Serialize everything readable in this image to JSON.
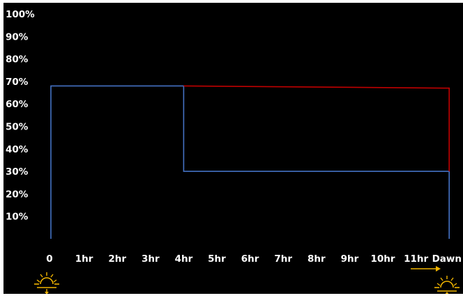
{
  "chart_data": {
    "type": "line",
    "title": "",
    "xlabel": "",
    "ylabel": "",
    "ylim": [
      0,
      100
    ],
    "y_ticks": [
      "100%",
      "90%",
      "80%",
      "70%",
      "60%",
      "50%",
      "40%",
      "30%",
      "20%",
      "10%"
    ],
    "x_categories": [
      "0",
      "1hr",
      "2hr",
      "3hr",
      "4hr",
      "5hr",
      "6hr",
      "7hr",
      "8hr",
      "9hr",
      "10hr",
      "11hr",
      "Dawn"
    ],
    "grid": false,
    "legend": "none",
    "background": "#000000",
    "series": [
      {
        "color": "#4472c4",
        "points": [
          [
            0,
            0
          ],
          [
            0,
            68
          ],
          [
            4,
            68
          ],
          [
            4,
            30
          ],
          [
            12,
            30
          ],
          [
            12,
            0
          ]
        ]
      },
      {
        "color": "#c00000",
        "points": [
          [
            4,
            68
          ],
          [
            12,
            67
          ],
          [
            12,
            30
          ]
        ]
      }
    ],
    "annotations": [
      {
        "type": "sunset-icon",
        "x": "0",
        "color": "#f0b400"
      },
      {
        "type": "sunrise-icon",
        "x": "Dawn",
        "color": "#f0b400"
      }
    ]
  }
}
